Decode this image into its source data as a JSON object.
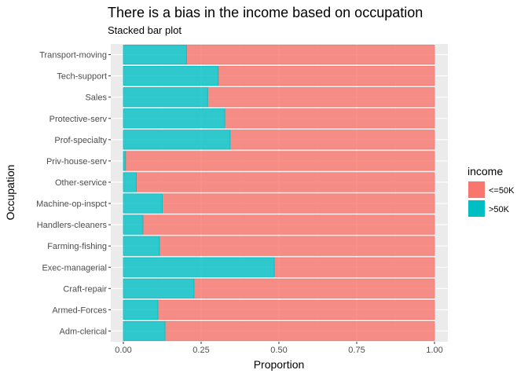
{
  "chart_data": {
    "type": "bar",
    "orientation": "horizontal",
    "stacked": true,
    "title": "There is a bias in the income based on occupation",
    "subtitle": "Stacked bar plot",
    "xlabel": "Proportion",
    "ylabel": "Occupation",
    "xlim": [
      0,
      1
    ],
    "xticks": [
      "0.00",
      "0.25",
      "0.50",
      "0.75",
      "1.00"
    ],
    "grid": true,
    "legend": {
      "title": "income",
      "position": "right"
    },
    "categories": [
      "Adm-clerical",
      "Armed-Forces",
      "Craft-repair",
      "Exec-managerial",
      "Farming-fishing",
      "Handlers-cleaners",
      "Machine-op-inspct",
      "Other-service",
      "Priv-house-serv",
      "Prof-specialty",
      "Protective-serv",
      "Sales",
      "Tech-support",
      "Transport-moving"
    ],
    "series": [
      {
        "name": ">50K",
        "color": "#00bfc4",
        "values": [
          0.134,
          0.111,
          0.227,
          0.485,
          0.116,
          0.063,
          0.125,
          0.042,
          0.007,
          0.343,
          0.326,
          0.271,
          0.305,
          0.203
        ]
      },
      {
        "name": "<=50K",
        "color": "#f8766d",
        "values": [
          0.866,
          0.889,
          0.773,
          0.515,
          0.884,
          0.937,
          0.875,
          0.958,
          0.993,
          0.657,
          0.674,
          0.729,
          0.695,
          0.797
        ]
      }
    ]
  }
}
